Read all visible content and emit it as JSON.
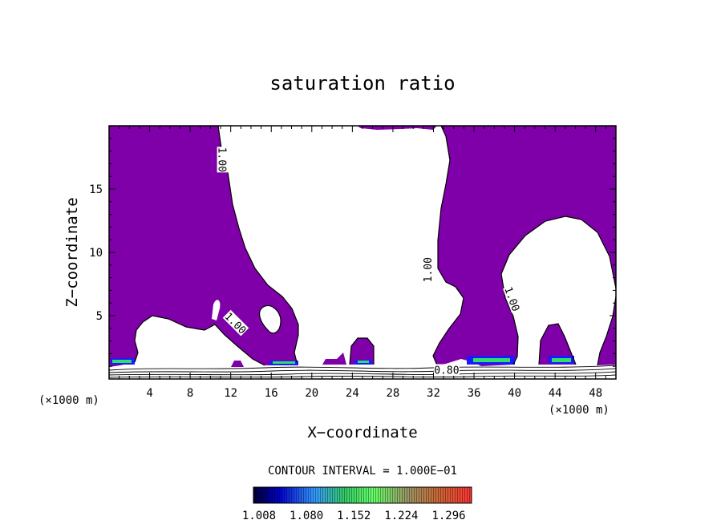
{
  "chart_data": {
    "type": "heatmap",
    "title": "saturation ratio",
    "xlabel": "X−coordinate",
    "ylabel": "Z−coordinate",
    "x_unit_left": "(×1000 m)",
    "x_unit_right": "(×1000 m)",
    "xlim": [
      0,
      50
    ],
    "ylim": [
      0,
      20
    ],
    "x_ticks": [
      4,
      8,
      12,
      16,
      20,
      24,
      28,
      32,
      36,
      40,
      44,
      48
    ],
    "y_ticks": [
      5,
      10,
      15
    ],
    "grid": false,
    "contour_interval_text": "CONTOUR INTERVAL = 1.000E−01",
    "colorbar": {
      "labels": [
        "1.008",
        "1.080",
        "1.152",
        "1.224",
        "1.296"
      ],
      "min": 1.008,
      "max": 1.296,
      "colors": [
        "#000033",
        "#0000cc",
        "#3399ff",
        "#33cc66",
        "#66ff66",
        "#999966",
        "#cc6633",
        "#ff3333"
      ]
    },
    "fill_color_supersaturated": "#7f00a9",
    "contour_labels": [
      {
        "text": "1.00",
        "x": 11.2,
        "y": 17.2,
        "rotate": 90
      },
      {
        "text": "1.00",
        "x": 12.5,
        "y": 4.3,
        "rotate": 45
      },
      {
        "text": "1.00",
        "x": 31.4,
        "y": 8.5,
        "rotate": -90
      },
      {
        "text": "1.00",
        "x": 39.8,
        "y": 6.2,
        "rotate": 70
      },
      {
        "text": "0.80",
        "x": 33.3,
        "y": 0.6,
        "rotate": 0
      }
    ]
  }
}
